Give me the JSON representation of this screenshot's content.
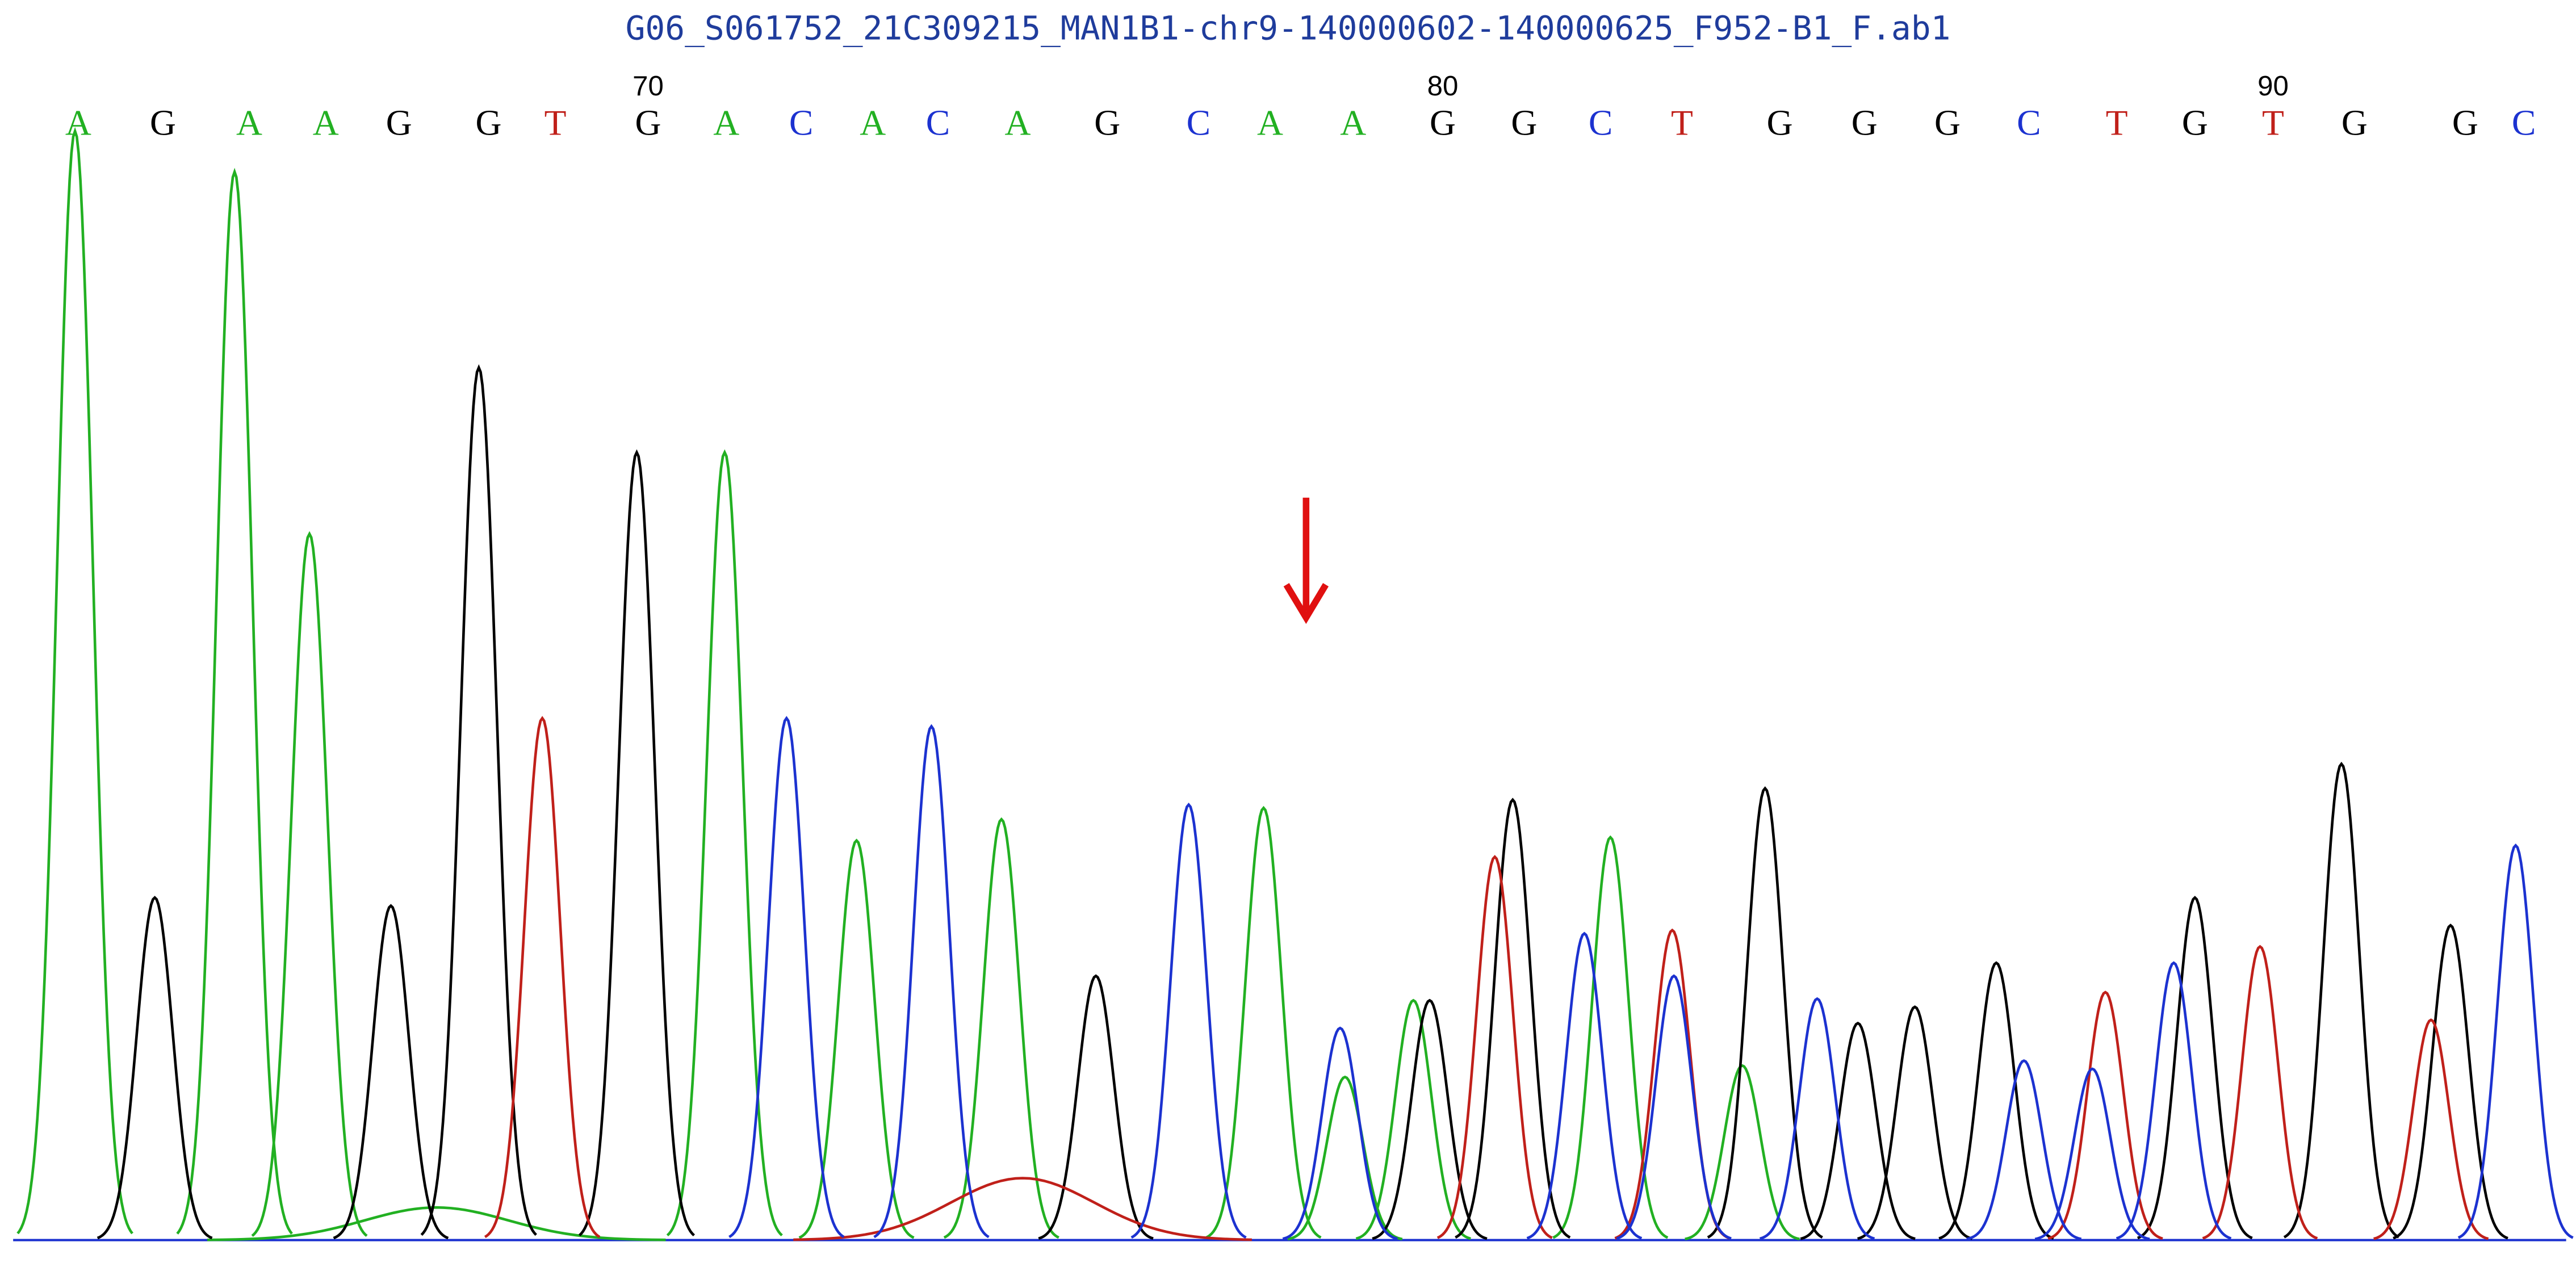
{
  "chart_data": {
    "type": "chromatogram",
    "title": "G06_S061752_21C309215_MAN1B1-chr9-140000602-140000625_F952-B1_F.ab1",
    "bases": [
      "A",
      "G",
      "A",
      "A",
      "G",
      "G",
      "T",
      "G",
      "A",
      "C",
      "A",
      "C",
      "A",
      "G",
      "C",
      "A",
      "A",
      "G",
      "G",
      "C",
      "T",
      "G",
      "G",
      "G",
      "C",
      "T",
      "G",
      "T",
      "G",
      "G",
      "C"
    ],
    "base_x": [
      40,
      92,
      145,
      192,
      237,
      292,
      333,
      390,
      438,
      484,
      528,
      568,
      617,
      672,
      728,
      772,
      823,
      878,
      928,
      975,
      1025,
      1085,
      1137,
      1188,
      1238,
      1292,
      1340,
      1388,
      1438,
      1506,
      1542
    ],
    "first_position": 63,
    "position_ticks": [
      70,
      80,
      90
    ],
    "xlim": [
      0,
      1568
    ],
    "ylim": [
      0,
      700
    ],
    "series": [
      {
        "name": "A",
        "color": "#22b022",
        "peak_x": [
          38,
          136,
          182,
          260,
          437,
          518,
          607,
          768,
          818,
          860,
          981,
          1062
        ],
        "values": [
          680,
          655,
          433,
          20,
          483,
          245,
          258,
          265,
          100,
          147,
          247,
          107
        ]
      },
      {
        "name": "G",
        "color": "#000000",
        "peak_x": [
          87,
          232,
          286,
          383,
          665,
          870,
          921,
          1076,
          1133,
          1168,
          1218,
          1340,
          1430,
          1497
        ],
        "values": [
          210,
          205,
          535,
          483,
          162,
          147,
          270,
          277,
          133,
          143,
          170,
          210,
          292,
          193
        ]
      },
      {
        "name": "T",
        "color": "#c0201a",
        "peak_x": [
          325,
          620,
          910,
          1019,
          1285,
          1380,
          1485
        ],
        "values": [
          320,
          38,
          235,
          190,
          152,
          180,
          135
        ]
      },
      {
        "name": "C",
        "color": "#1c32d0",
        "peak_x": [
          475,
          564,
          722,
          815,
          965,
          1020,
          1108,
          1235,
          1277,
          1327,
          1537
        ],
        "values": [
          320,
          315,
          267,
          130,
          188,
          162,
          148,
          110,
          105,
          170,
          242
        ]
      }
    ]
  }
}
